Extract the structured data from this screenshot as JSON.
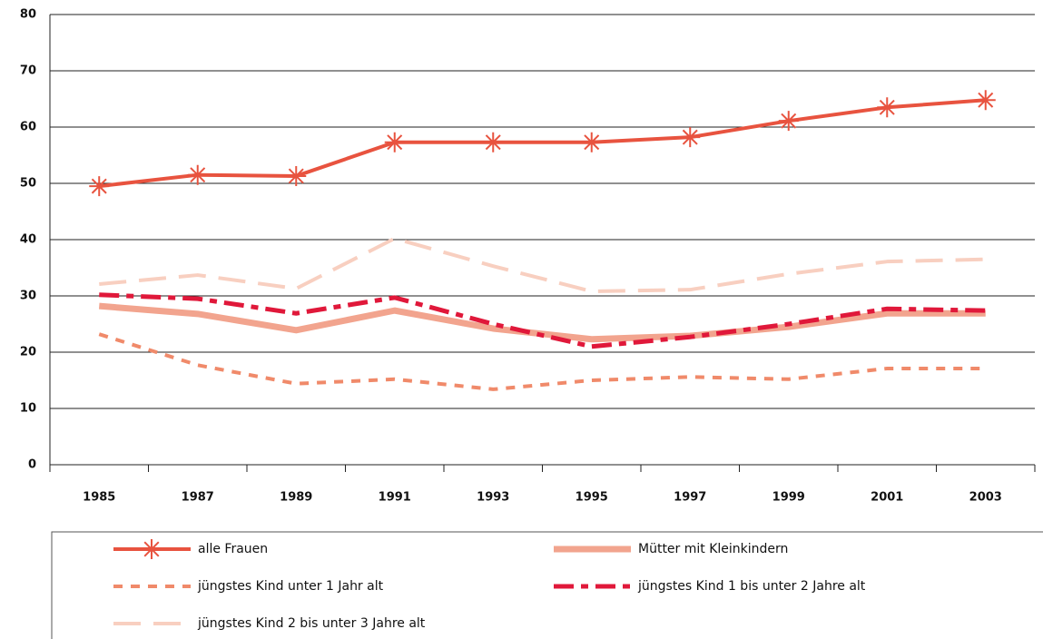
{
  "chart_data": {
    "type": "line",
    "categories": [
      "1985",
      "1987",
      "1989",
      "1991",
      "1993",
      "1995",
      "1997",
      "1999",
      "2001",
      "2003"
    ],
    "ylim": [
      0,
      80
    ],
    "yticks": [
      0,
      10,
      20,
      30,
      40,
      50,
      60,
      70,
      80
    ],
    "grid": true,
    "series": [
      {
        "name": "alle Frauen",
        "color": "#e8533f",
        "style": "solid",
        "marker": "asterisk",
        "values": [
          49.5,
          51.5,
          51.3,
          57.3,
          57.3,
          57.3,
          58.2,
          61.1,
          63.5,
          64.8
        ]
      },
      {
        "name": "Mütter mit  Kleinkindern",
        "color": "#f2a48e",
        "style": "thick",
        "values": [
          28.2,
          26.8,
          23.9,
          27.4,
          24.2,
          22.3,
          22.9,
          24.5,
          26.9,
          26.9
        ]
      },
      {
        "name": "jüngstes Kind unter 1 Jahr alt",
        "color": "#f08a6a",
        "style": "dotted",
        "values": [
          23.2,
          17.7,
          14.4,
          15.2,
          13.4,
          15.0,
          15.6,
          15.2,
          17.1,
          17.1
        ]
      },
      {
        "name": "jüngstes Kind 1 bis unter 2 Jahre alt",
        "color": "#e0183a",
        "style": "dashdot",
        "values": [
          30.2,
          29.5,
          26.9,
          29.7,
          25.0,
          21.0,
          22.7,
          25.0,
          27.7,
          27.4
        ]
      },
      {
        "name": "jüngstes Kind 2 bis unter 3 Jahre alt",
        "color": "#f8cfc0",
        "style": "dashed",
        "values": [
          32.1,
          33.7,
          31.3,
          40.2,
          35.3,
          30.8,
          31.1,
          33.9,
          36.1,
          36.5
        ]
      }
    ]
  }
}
